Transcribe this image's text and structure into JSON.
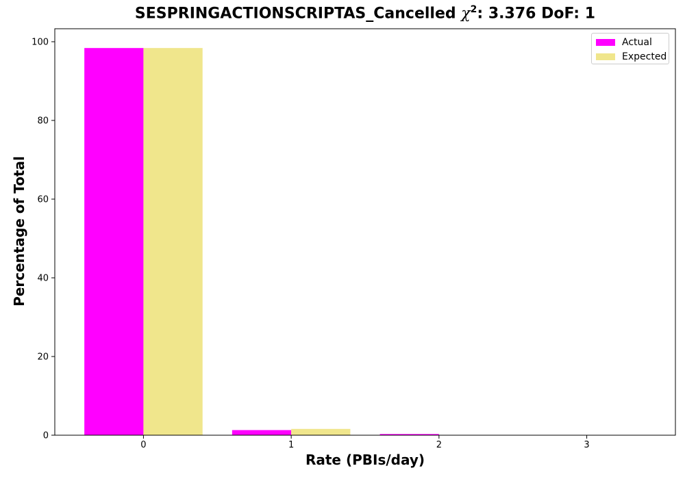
{
  "chart_data": {
    "type": "bar",
    "title": "SESPRINGACTIONSCRIPTAS_Cancelled",
    "title_chi_symbol": "χ",
    "title_chi_exponent": "2",
    "title_stats": ": 3.376 DoF: 1",
    "xlabel": "Rate (PBIs/day)",
    "ylabel": "Percentage of Total",
    "categories": [
      "0",
      "1",
      "2",
      "3"
    ],
    "series": [
      {
        "name": "Actual",
        "color": "#ff00ff",
        "values": [
          98.4,
          1.3,
          0.3,
          0.0
        ]
      },
      {
        "name": "Expected",
        "color": "#f0e68c",
        "values": [
          98.4,
          1.6,
          0.0,
          0.0
        ]
      }
    ],
    "xlim": [
      -0.6,
      3.6
    ],
    "ylim": [
      0,
      103.3
    ],
    "yticks": [
      0,
      20,
      40,
      60,
      80,
      100
    ],
    "grid": false,
    "legend_position": "top-right"
  }
}
